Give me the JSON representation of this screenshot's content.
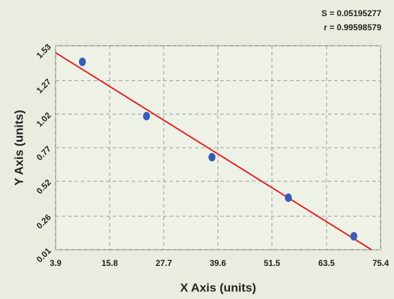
{
  "chart_data": {
    "type": "scatter",
    "annotations": [
      "S = 0.05195277",
      "r = 0.99598579"
    ],
    "xlabel": "X Axis (units)",
    "ylabel": "Y Axis (units)",
    "x": [
      9.8,
      23.9,
      38.3,
      55.1,
      69.5
    ],
    "values": [
      1.41,
      1.006,
      0.7,
      0.398,
      0.11
    ],
    "color": "#3a5bb5",
    "fit": {
      "x": [
        3.9,
        73.4
      ],
      "y": [
        1.478,
        0.01
      ],
      "color": "#e02222"
    },
    "xlim": [
      3.9,
      75.4
    ],
    "xticks": [
      3.9,
      15.8,
      27.7,
      39.6,
      51.5,
      63.5,
      75.4
    ],
    "ylim": [
      0.01,
      1.53
    ],
    "yticks": [
      0.01,
      0.26,
      0.52,
      0.77,
      1.02,
      1.27,
      1.53
    ],
    "grid": true
  }
}
